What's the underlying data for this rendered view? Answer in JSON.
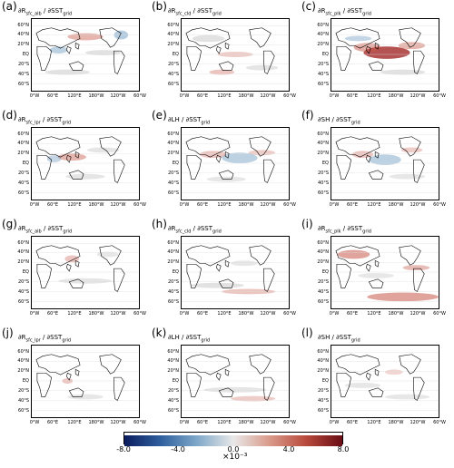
{
  "panels": [
    {
      "tag": "(a)",
      "title_main": "∂R",
      "title_sub": "sfc_alb",
      "title_tail": " / ∂SST",
      "title_sub2": "grid"
    },
    {
      "tag": "(b)",
      "title_main": "∂R",
      "title_sub": "sfc_cld",
      "title_tail": " / ∂SST",
      "title_sub2": "grid"
    },
    {
      "tag": "(c)",
      "title_main": "∂R",
      "title_sub": "sfc_plk",
      "title_tail": " / ∂SST",
      "title_sub2": "grid"
    },
    {
      "tag": "(d)",
      "title_main": "∂R",
      "title_sub": "sfc_lpr",
      "title_tail": " / ∂SST",
      "title_sub2": "grid"
    },
    {
      "tag": "(e)",
      "title_main": "∂LH / ∂SST",
      "title_sub": "",
      "title_tail": "",
      "title_sub2": "grid"
    },
    {
      "tag": "(f)",
      "title_main": "∂SH / ∂SST",
      "title_sub": "",
      "title_tail": "",
      "title_sub2": "grid"
    },
    {
      "tag": "(g)",
      "title_main": "∂R",
      "title_sub": "sfc_alb",
      "title_tail": " / ∂SST",
      "title_sub2": "grid"
    },
    {
      "tag": "(h)",
      "title_main": "∂R",
      "title_sub": "sfc_cld",
      "title_tail": " / ∂SST",
      "title_sub2": "grid"
    },
    {
      "tag": "(i)",
      "title_main": "∂R",
      "title_sub": "sfc_plk",
      "title_tail": " / ∂SST",
      "title_sub2": "grid"
    },
    {
      "tag": "(j)",
      "title_main": "∂R",
      "title_sub": "sfc_lpr",
      "title_tail": " / ∂SST",
      "title_sub2": "grid"
    },
    {
      "tag": "(k)",
      "title_main": "∂LH / ∂SST",
      "title_sub": "",
      "title_tail": "",
      "title_sub2": "grid"
    },
    {
      "tag": "(l)",
      "title_main": "∂SH / ∂SST",
      "title_sub": "",
      "title_tail": "",
      "title_sub2": "grid"
    }
  ],
  "lat_labels": [
    "60°N",
    "40°N",
    "20°N",
    "EQ",
    "20°S",
    "40°S",
    "60°S"
  ],
  "lon_labels": [
    "0°W",
    "60°E",
    "120°E",
    "180°W",
    "120°W",
    "60°W"
  ],
  "colorbar": {
    "ticks": [
      "-8.0",
      "-4.0",
      "0.0",
      "4.0",
      "8.0"
    ],
    "unit": "×10⁻³",
    "colors": [
      "#0b1d5e",
      "#2f5f9e",
      "#7fa8c9",
      "#e8e8e8",
      "#d99a8a",
      "#b84a3c",
      "#6a0d15"
    ]
  }
}
